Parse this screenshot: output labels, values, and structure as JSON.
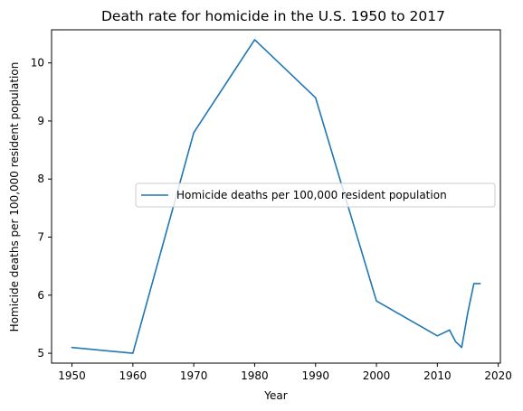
{
  "chart_data": {
    "type": "line",
    "title": "Death rate for homicide in the U.S. 1950 to 2017",
    "xlabel": "Year",
    "ylabel": "Homicide deaths per 100,000 resident population",
    "xlim": [
      1946.65,
      2020.35
    ],
    "ylim": [
      4.83,
      10.57
    ],
    "x_ticks": [
      1950,
      1960,
      1970,
      1980,
      1990,
      2000,
      2010,
      2020
    ],
    "y_ticks": [
      5,
      6,
      7,
      8,
      9,
      10
    ],
    "grid": false,
    "legend_position": "center-right",
    "series": [
      {
        "name": "Homicide deaths per 100,000 resident population",
        "color": "#1f77b4",
        "x": [
          1950,
          1960,
          1970,
          1980,
          1990,
          2000,
          2010,
          2012,
          2013,
          2014,
          2015,
          2016,
          2017
        ],
        "y": [
          5.1,
          5.0,
          8.8,
          10.4,
          9.4,
          5.9,
          5.3,
          5.4,
          5.2,
          5.1,
          5.7,
          6.2,
          6.2
        ]
      }
    ]
  }
}
